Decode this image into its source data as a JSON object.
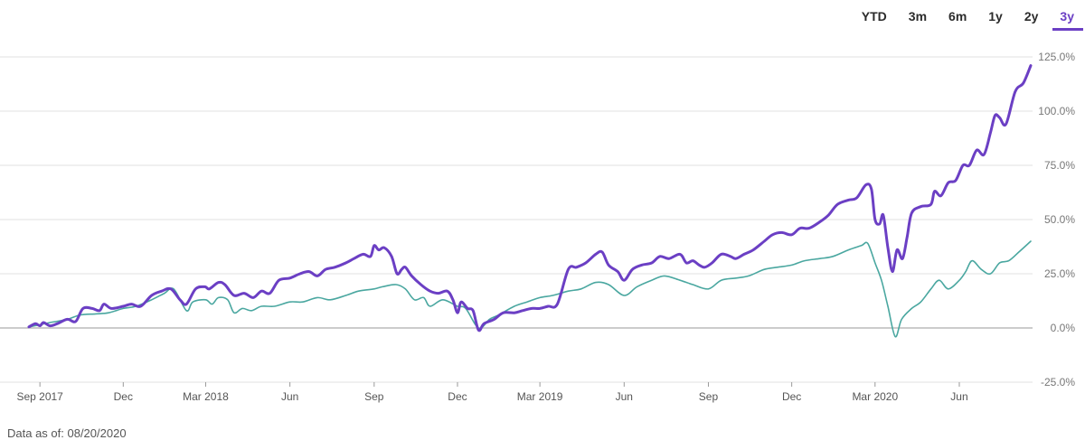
{
  "range_tabs": [
    {
      "label": "YTD",
      "active": false
    },
    {
      "label": "3m",
      "active": false
    },
    {
      "label": "6m",
      "active": false
    },
    {
      "label": "1y",
      "active": false
    },
    {
      "label": "2y",
      "active": false
    },
    {
      "label": "3y",
      "active": true
    }
  ],
  "footnote": "Data as of: 08/20/2020",
  "colors": {
    "accent": "#6b3fc4",
    "series_primary": "#6b3fc4",
    "series_secondary": "#4aa7a0"
  },
  "chart_data": {
    "type": "line",
    "grid": true,
    "legend": "none",
    "ylim": [
      -25,
      125
    ],
    "yticks": [
      -25,
      0,
      25,
      50,
      75,
      100,
      125
    ],
    "ytick_labels": [
      "-25.0%",
      "0.0%",
      "25.0%",
      "50.0%",
      "75.0%",
      "100.0%",
      "125.0%"
    ],
    "xlim": [
      "2017-08-20",
      "2020-08-20"
    ],
    "xticks": [
      {
        "date": "2017-09-01",
        "label": "Sep 2017"
      },
      {
        "date": "2017-12-01",
        "label": "Dec"
      },
      {
        "date": "2018-03-01",
        "label": "Mar 2018"
      },
      {
        "date": "2018-06-01",
        "label": "Jun"
      },
      {
        "date": "2018-09-01",
        "label": "Sep"
      },
      {
        "date": "2018-12-01",
        "label": "Dec"
      },
      {
        "date": "2019-03-01",
        "label": "Mar 2019"
      },
      {
        "date": "2019-06-01",
        "label": "Jun"
      },
      {
        "date": "2019-09-01",
        "label": "Sep"
      },
      {
        "date": "2019-12-01",
        "label": "Dec"
      },
      {
        "date": "2020-03-01",
        "label": "Mar 2020"
      },
      {
        "date": "2020-06-01",
        "label": "Jun"
      }
    ],
    "series": [
      {
        "color": "#6b3fc4",
        "points": [
          [
            "2017-08-20",
            0.5
          ],
          [
            "2017-08-27",
            2
          ],
          [
            "2017-09-01",
            1
          ],
          [
            "2017-09-05",
            2.5
          ],
          [
            "2017-09-12",
            1
          ],
          [
            "2017-09-20",
            2
          ],
          [
            "2017-10-01",
            4
          ],
          [
            "2017-10-10",
            3
          ],
          [
            "2017-10-18",
            9
          ],
          [
            "2017-10-28",
            9
          ],
          [
            "2017-11-05",
            8
          ],
          [
            "2017-11-10",
            11
          ],
          [
            "2017-11-18",
            9
          ],
          [
            "2017-12-01",
            10
          ],
          [
            "2017-12-10",
            11
          ],
          [
            "2017-12-20",
            10
          ],
          [
            "2018-01-01",
            15
          ],
          [
            "2018-01-12",
            17
          ],
          [
            "2018-01-22",
            18
          ],
          [
            "2018-02-01",
            13
          ],
          [
            "2018-02-08",
            11
          ],
          [
            "2018-02-18",
            18
          ],
          [
            "2018-02-28",
            19
          ],
          [
            "2018-03-05",
            18
          ],
          [
            "2018-03-15",
            21
          ],
          [
            "2018-03-22",
            20
          ],
          [
            "2018-04-01",
            15
          ],
          [
            "2018-04-12",
            16
          ],
          [
            "2018-04-22",
            14
          ],
          [
            "2018-05-01",
            17
          ],
          [
            "2018-05-10",
            16
          ],
          [
            "2018-05-20",
            22
          ],
          [
            "2018-06-01",
            23
          ],
          [
            "2018-06-12",
            25
          ],
          [
            "2018-06-22",
            26
          ],
          [
            "2018-07-01",
            24
          ],
          [
            "2018-07-10",
            27
          ],
          [
            "2018-07-20",
            28
          ],
          [
            "2018-08-01",
            30
          ],
          [
            "2018-08-10",
            32
          ],
          [
            "2018-08-20",
            34
          ],
          [
            "2018-08-28",
            33
          ],
          [
            "2018-09-01",
            38
          ],
          [
            "2018-09-06",
            36
          ],
          [
            "2018-09-12",
            37
          ],
          [
            "2018-09-20",
            33
          ],
          [
            "2018-09-26",
            25
          ],
          [
            "2018-10-01",
            27
          ],
          [
            "2018-10-05",
            28
          ],
          [
            "2018-10-12",
            24
          ],
          [
            "2018-10-22",
            20
          ],
          [
            "2018-11-01",
            17
          ],
          [
            "2018-11-10",
            16
          ],
          [
            "2018-11-20",
            17
          ],
          [
            "2018-11-26",
            13
          ],
          [
            "2018-12-01",
            7
          ],
          [
            "2018-12-05",
            12
          ],
          [
            "2018-12-12",
            9
          ],
          [
            "2018-12-18",
            8
          ],
          [
            "2018-12-24",
            -1
          ],
          [
            "2018-12-30",
            2
          ],
          [
            "2019-01-10",
            4
          ],
          [
            "2019-01-20",
            7
          ],
          [
            "2019-02-01",
            7
          ],
          [
            "2019-02-10",
            8
          ],
          [
            "2019-02-20",
            9
          ],
          [
            "2019-03-01",
            9
          ],
          [
            "2019-03-10",
            10
          ],
          [
            "2019-03-20",
            11
          ],
          [
            "2019-04-01",
            27
          ],
          [
            "2019-04-10",
            28
          ],
          [
            "2019-04-20",
            30
          ],
          [
            "2019-05-01",
            34
          ],
          [
            "2019-05-08",
            35
          ],
          [
            "2019-05-15",
            29
          ],
          [
            "2019-05-25",
            26
          ],
          [
            "2019-06-01",
            22
          ],
          [
            "2019-06-10",
            27
          ],
          [
            "2019-06-20",
            29
          ],
          [
            "2019-07-01",
            30
          ],
          [
            "2019-07-10",
            33
          ],
          [
            "2019-07-20",
            32
          ],
          [
            "2019-08-01",
            34
          ],
          [
            "2019-08-08",
            30
          ],
          [
            "2019-08-15",
            31
          ],
          [
            "2019-08-22",
            29
          ],
          [
            "2019-08-28",
            28
          ],
          [
            "2019-09-05",
            30
          ],
          [
            "2019-09-15",
            34
          ],
          [
            "2019-09-25",
            33
          ],
          [
            "2019-10-01",
            32
          ],
          [
            "2019-10-10",
            34
          ],
          [
            "2019-10-20",
            36
          ],
          [
            "2019-11-01",
            40
          ],
          [
            "2019-11-10",
            43
          ],
          [
            "2019-11-20",
            44
          ],
          [
            "2019-12-01",
            43
          ],
          [
            "2019-12-10",
            46
          ],
          [
            "2019-12-20",
            46
          ],
          [
            "2020-01-01",
            49
          ],
          [
            "2020-01-10",
            52
          ],
          [
            "2020-01-20",
            57
          ],
          [
            "2020-02-01",
            59
          ],
          [
            "2020-02-10",
            60
          ],
          [
            "2020-02-20",
            66
          ],
          [
            "2020-02-26",
            64
          ],
          [
            "2020-03-01",
            50
          ],
          [
            "2020-03-06",
            48
          ],
          [
            "2020-03-10",
            52
          ],
          [
            "2020-03-15",
            37
          ],
          [
            "2020-03-20",
            26
          ],
          [
            "2020-03-25",
            36
          ],
          [
            "2020-03-31",
            32
          ],
          [
            "2020-04-05",
            42
          ],
          [
            "2020-04-10",
            53
          ],
          [
            "2020-04-20",
            56
          ],
          [
            "2020-05-01",
            57
          ],
          [
            "2020-05-05",
            63
          ],
          [
            "2020-05-12",
            61
          ],
          [
            "2020-05-20",
            67
          ],
          [
            "2020-05-28",
            68
          ],
          [
            "2020-06-05",
            75
          ],
          [
            "2020-06-12",
            75
          ],
          [
            "2020-06-20",
            82
          ],
          [
            "2020-06-28",
            80
          ],
          [
            "2020-07-05",
            90
          ],
          [
            "2020-07-10",
            98
          ],
          [
            "2020-07-15",
            97
          ],
          [
            "2020-07-22",
            94
          ],
          [
            "2020-08-01",
            109
          ],
          [
            "2020-08-10",
            113
          ],
          [
            "2020-08-18",
            121
          ]
        ]
      },
      {
        "color": "#4aa7a0",
        "points": [
          [
            "2017-08-20",
            0.5
          ],
          [
            "2017-09-01",
            1.5
          ],
          [
            "2017-09-12",
            2.5
          ],
          [
            "2017-10-01",
            4
          ],
          [
            "2017-10-15",
            6
          ],
          [
            "2017-11-01",
            6.5
          ],
          [
            "2017-11-15",
            7
          ],
          [
            "2017-12-01",
            9
          ],
          [
            "2017-12-15",
            10
          ],
          [
            "2018-01-01",
            13
          ],
          [
            "2018-01-15",
            16
          ],
          [
            "2018-01-25",
            18
          ],
          [
            "2018-02-08",
            8
          ],
          [
            "2018-02-15",
            12
          ],
          [
            "2018-03-01",
            13
          ],
          [
            "2018-03-08",
            11
          ],
          [
            "2018-03-15",
            14
          ],
          [
            "2018-03-25",
            13
          ],
          [
            "2018-04-01",
            7
          ],
          [
            "2018-04-10",
            9
          ],
          [
            "2018-04-20",
            8
          ],
          [
            "2018-05-01",
            10
          ],
          [
            "2018-05-15",
            10
          ],
          [
            "2018-06-01",
            12
          ],
          [
            "2018-06-15",
            12
          ],
          [
            "2018-07-01",
            14
          ],
          [
            "2018-07-15",
            13
          ],
          [
            "2018-08-01",
            15
          ],
          [
            "2018-08-15",
            17
          ],
          [
            "2018-09-01",
            18
          ],
          [
            "2018-09-10",
            19
          ],
          [
            "2018-09-25",
            20
          ],
          [
            "2018-10-05",
            18
          ],
          [
            "2018-10-15",
            13
          ],
          [
            "2018-10-25",
            14
          ],
          [
            "2018-11-01",
            10
          ],
          [
            "2018-11-15",
            13
          ],
          [
            "2018-12-01",
            10
          ],
          [
            "2018-12-10",
            9
          ],
          [
            "2018-12-24",
            0
          ],
          [
            "2019-01-05",
            4
          ],
          [
            "2019-01-15",
            6
          ],
          [
            "2019-02-01",
            10
          ],
          [
            "2019-02-15",
            12
          ],
          [
            "2019-03-01",
            14
          ],
          [
            "2019-03-15",
            15
          ],
          [
            "2019-04-01",
            17
          ],
          [
            "2019-04-15",
            18
          ],
          [
            "2019-05-01",
            21
          ],
          [
            "2019-05-15",
            20
          ],
          [
            "2019-06-01",
            15
          ],
          [
            "2019-06-15",
            19
          ],
          [
            "2019-07-01",
            22
          ],
          [
            "2019-07-15",
            24
          ],
          [
            "2019-08-01",
            22
          ],
          [
            "2019-08-15",
            20
          ],
          [
            "2019-09-01",
            18
          ],
          [
            "2019-09-15",
            22
          ],
          [
            "2019-10-01",
            23
          ],
          [
            "2019-10-15",
            24
          ],
          [
            "2019-11-01",
            27
          ],
          [
            "2019-11-15",
            28
          ],
          [
            "2019-12-01",
            29
          ],
          [
            "2019-12-15",
            31
          ],
          [
            "2020-01-01",
            32
          ],
          [
            "2020-01-15",
            33
          ],
          [
            "2020-02-01",
            36
          ],
          [
            "2020-02-15",
            38
          ],
          [
            "2020-02-22",
            39
          ],
          [
            "2020-03-01",
            30
          ],
          [
            "2020-03-08",
            22
          ],
          [
            "2020-03-15",
            10
          ],
          [
            "2020-03-23",
            -4
          ],
          [
            "2020-03-30",
            4
          ],
          [
            "2020-04-10",
            9
          ],
          [
            "2020-04-20",
            12
          ],
          [
            "2020-05-01",
            18
          ],
          [
            "2020-05-10",
            22
          ],
          [
            "2020-05-20",
            18
          ],
          [
            "2020-06-01",
            22
          ],
          [
            "2020-06-08",
            26
          ],
          [
            "2020-06-15",
            31
          ],
          [
            "2020-06-25",
            27
          ],
          [
            "2020-07-05",
            25
          ],
          [
            "2020-07-15",
            30
          ],
          [
            "2020-07-25",
            31
          ],
          [
            "2020-08-05",
            35
          ],
          [
            "2020-08-18",
            40
          ]
        ]
      }
    ]
  }
}
